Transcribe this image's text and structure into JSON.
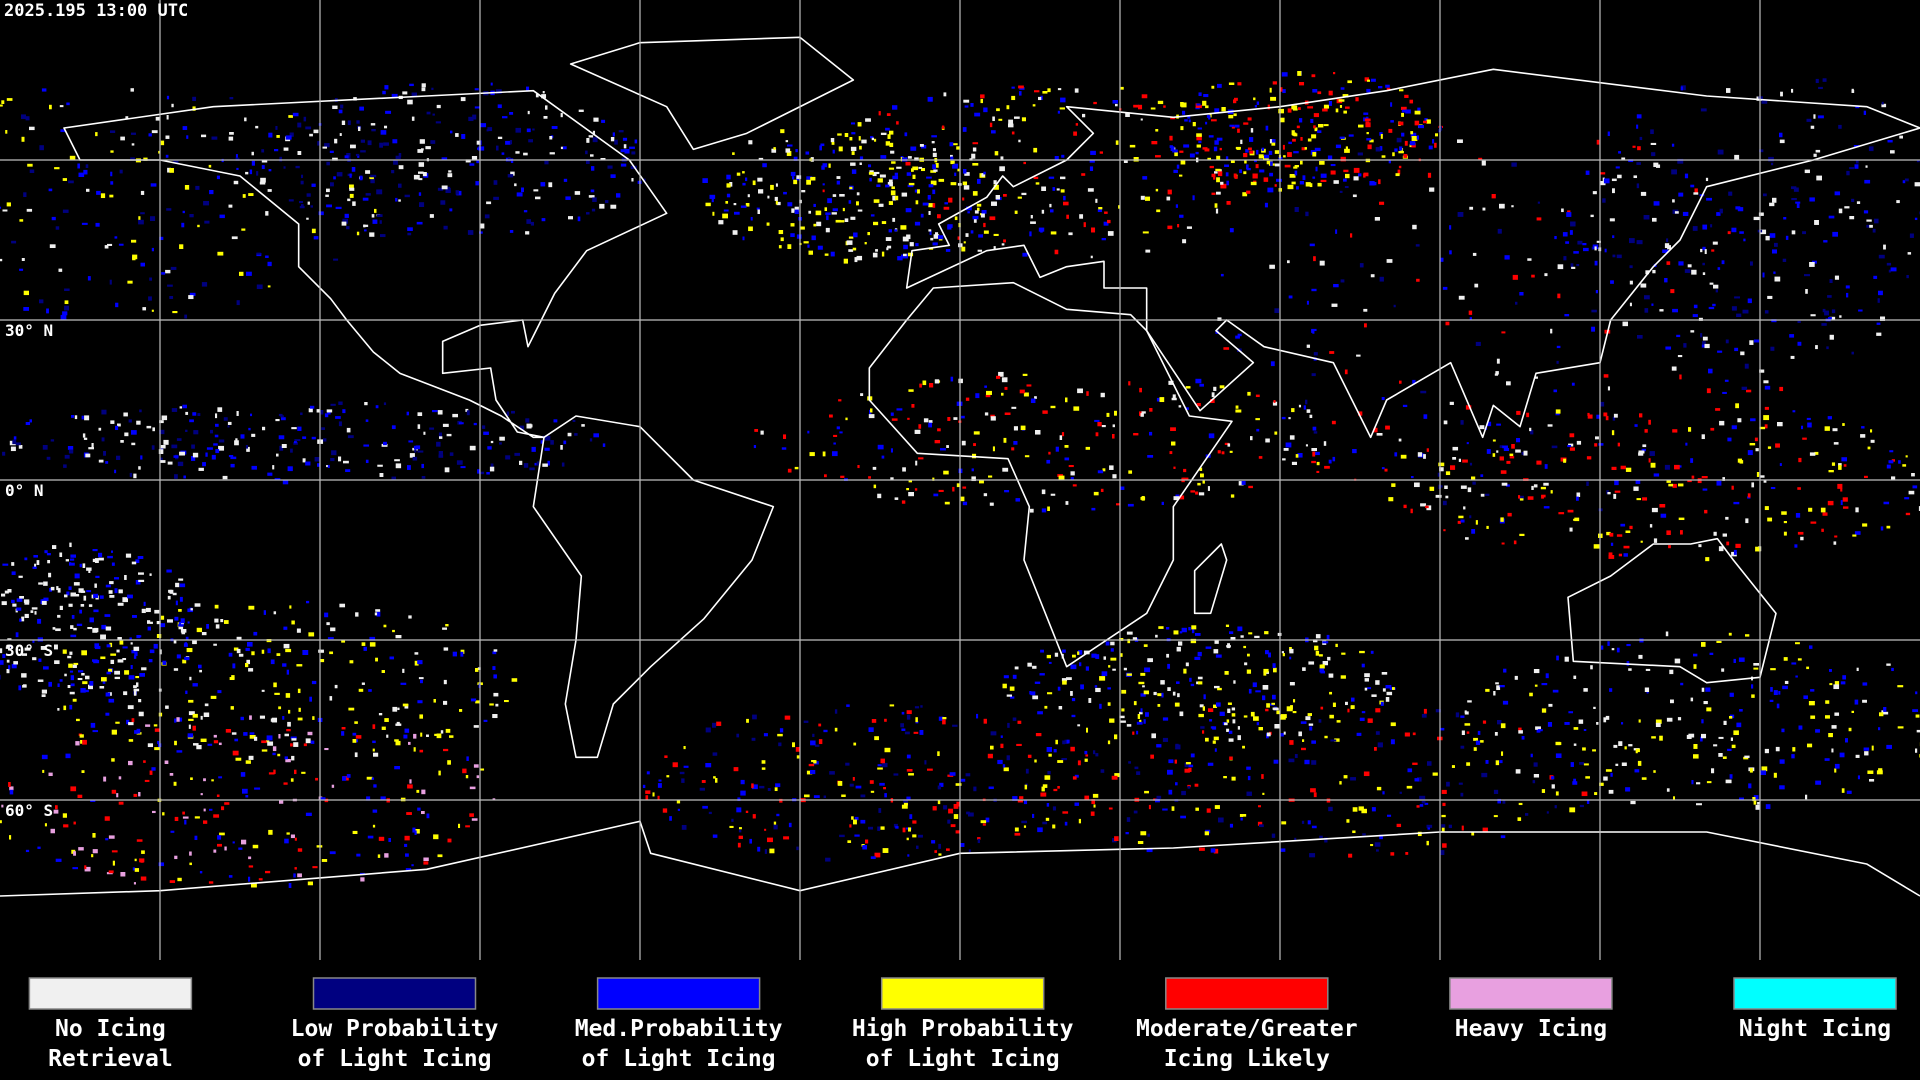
{
  "timestamp": "2025.195 13:00 UTC",
  "lat_labels": [
    "30° N",
    "0° N",
    "30° S",
    "60° S"
  ],
  "legend": [
    {
      "lines": [
        "No Icing",
        "Retrieval"
      ],
      "color": "#f0f0f0"
    },
    {
      "lines": [
        "Low Probability",
        "of Light Icing"
      ],
      "color": "#000080"
    },
    {
      "lines": [
        "Med.Probability",
        "of Light Icing"
      ],
      "color": "#0000ff"
    },
    {
      "lines": [
        "High Probability",
        "of Light Icing"
      ],
      "color": "#ffff00"
    },
    {
      "lines": [
        "Moderate/Greater",
        "Icing Likely"
      ],
      "color": "#ff0000"
    },
    {
      "lines": [
        "Heavy Icing"
      ],
      "color": "#e8a0e0"
    },
    {
      "lines": [
        "Night Icing"
      ],
      "color": "#00ffff"
    }
  ]
}
